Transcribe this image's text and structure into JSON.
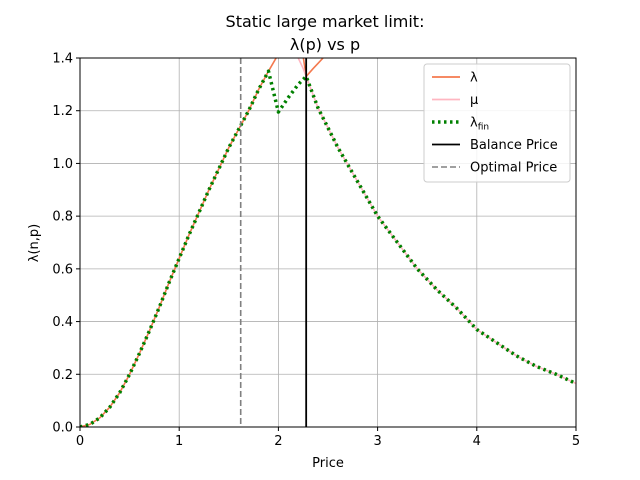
{
  "chart_data": {
    "type": "line",
    "title_line1": "Static large market limit:",
    "title_line2": "λ(p) vs p",
    "xlabel": "Price",
    "ylabel": "λ(n,p)",
    "xlim": [
      0,
      5
    ],
    "ylim": [
      0,
      1.4
    ],
    "xticks": [
      0,
      1,
      2,
      3,
      4,
      5
    ],
    "xtick_labels": [
      "0",
      "1",
      "2",
      "3",
      "4",
      "5"
    ],
    "yticks": [
      0.0,
      0.2,
      0.4,
      0.6,
      0.8,
      1.0,
      1.2,
      1.4
    ],
    "ytick_labels": [
      "0.0",
      "0.2",
      "0.4",
      "0.6",
      "0.8",
      "1.0",
      "1.2",
      "1.4"
    ],
    "grid": true,
    "legend_position": "top-right",
    "balance_price": 2.28,
    "optimal_price": 1.62,
    "series": [
      {
        "name": "λ",
        "color": "#f4794e",
        "style": "solid",
        "x": [
          0,
          0.1,
          0.2,
          0.3,
          0.4,
          0.5,
          0.6,
          0.7,
          0.8,
          0.9,
          1.0,
          1.1,
          1.2,
          1.3,
          1.4,
          1.5,
          1.6,
          1.7,
          1.8,
          1.9,
          2.0,
          2.1,
          2.2,
          2.28,
          2.35,
          2.4,
          2.45
        ],
        "y": [
          0,
          0.01,
          0.035,
          0.075,
          0.13,
          0.2,
          0.28,
          0.365,
          0.455,
          0.55,
          0.64,
          0.73,
          0.815,
          0.9,
          0.98,
          1.06,
          1.13,
          1.2,
          1.28,
          1.35,
          1.415,
          1.48,
          1.53,
          1.33,
          1.36,
          1.38,
          1.4
        ]
      },
      {
        "name": "μ",
        "color": "#ffb6c1",
        "style": "solid",
        "x": [
          2.2,
          2.25,
          2.28,
          2.4,
          2.6,
          2.8,
          3.0,
          3.2,
          3.4,
          3.6,
          3.8,
          4.0,
          4.2,
          4.4,
          4.6,
          4.8,
          5.0
        ],
        "y": [
          1.4,
          1.36,
          1.33,
          1.21,
          1.06,
          0.93,
          0.8,
          0.7,
          0.6,
          0.52,
          0.45,
          0.37,
          0.32,
          0.27,
          0.23,
          0.2,
          0.165
        ]
      },
      {
        "name": "λ_fin",
        "color": "#008000",
        "style": "dotted",
        "x": [
          0,
          0.1,
          0.2,
          0.3,
          0.4,
          0.5,
          0.6,
          0.7,
          0.8,
          0.9,
          1.0,
          1.1,
          1.2,
          1.3,
          1.4,
          1.5,
          1.6,
          1.7,
          1.8,
          1.9,
          2.0,
          2.1,
          2.2,
          2.28,
          2.4,
          2.6,
          2.8,
          3.0,
          3.2,
          3.4,
          3.6,
          3.8,
          4.0,
          4.2,
          4.4,
          4.6,
          4.8,
          5.0
        ],
        "y": [
          0,
          0.01,
          0.035,
          0.075,
          0.13,
          0.2,
          0.28,
          0.365,
          0.455,
          0.55,
          0.64,
          0.73,
          0.815,
          0.9,
          0.98,
          1.06,
          1.13,
          1.2,
          1.28,
          1.35,
          1.195,
          1.25,
          1.3,
          1.33,
          1.21,
          1.06,
          0.93,
          0.8,
          0.7,
          0.6,
          0.52,
          0.45,
          0.37,
          0.32,
          0.27,
          0.23,
          0.2,
          0.165
        ]
      }
    ],
    "legend": [
      {
        "label": "λ",
        "color": "#f4794e",
        "style": "solid"
      },
      {
        "label": "μ",
        "color": "#ffb6c1",
        "style": "solid"
      },
      {
        "label": "λfin",
        "color": "#008000",
        "style": "dotted"
      },
      {
        "label": "Balance Price",
        "color": "#000000",
        "style": "solid"
      },
      {
        "label": "Optimal Price",
        "color": "#808080",
        "style": "dashed"
      }
    ]
  }
}
